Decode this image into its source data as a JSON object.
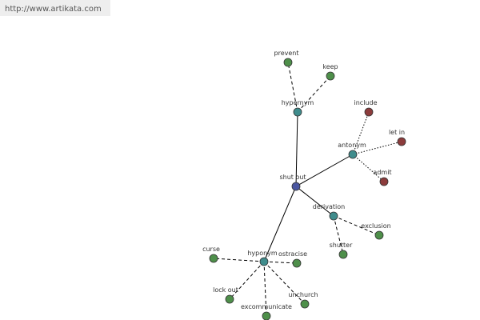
{
  "header": {
    "url": "http://www.artikata.com"
  },
  "nodes": [
    {
      "label": "shut out"
    },
    {
      "label": "hypernym"
    },
    {
      "label": "prevent"
    },
    {
      "label": "keep"
    },
    {
      "label": "antonym"
    },
    {
      "label": "include"
    },
    {
      "label": "let in"
    },
    {
      "label": "admit"
    },
    {
      "label": "derivation"
    },
    {
      "label": "exclusion"
    },
    {
      "label": "shutter"
    },
    {
      "label": "hyponym"
    },
    {
      "label": "ostracise"
    },
    {
      "label": "curse"
    },
    {
      "label": "lock out"
    },
    {
      "label": "excommunicate"
    },
    {
      "label": "unchurch"
    }
  ]
}
